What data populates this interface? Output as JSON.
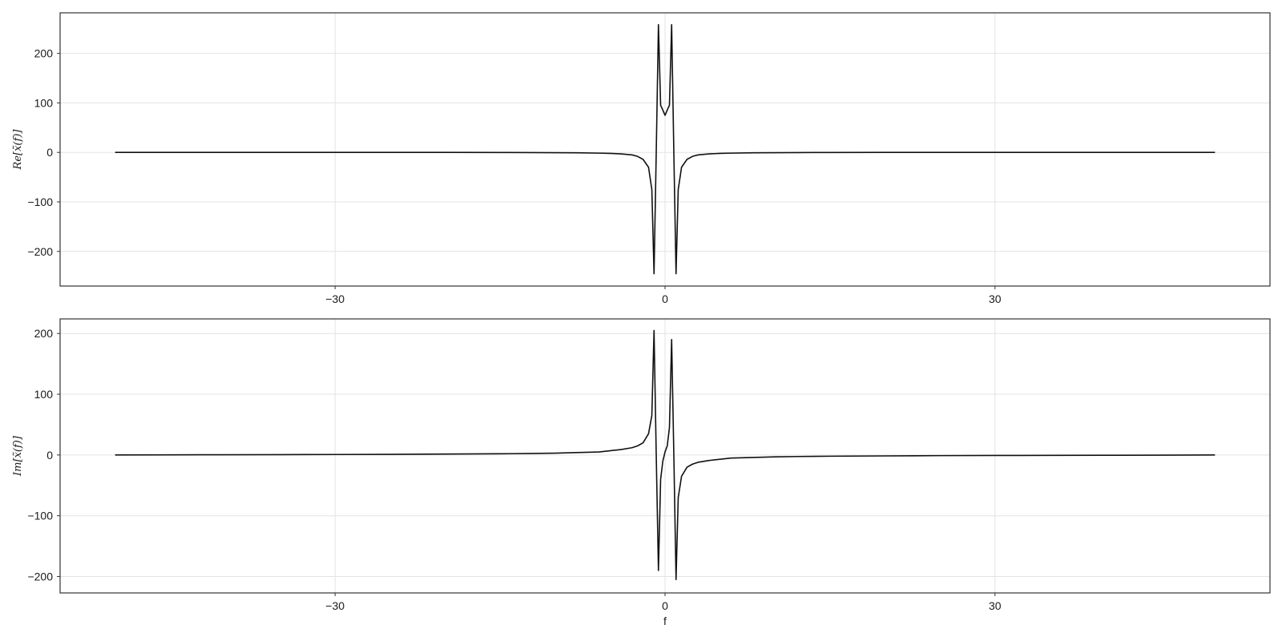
{
  "chart_data": [
    {
      "type": "line",
      "ylabel": "Re[x̃(f)]",
      "xlabel": "",
      "xlim": [
        -55,
        55
      ],
      "ylim": [
        -270,
        282
      ],
      "xticks": [
        -30,
        0,
        30
      ],
      "yticks": [
        -200,
        -100,
        0,
        100,
        200
      ],
      "x_tick_labels": [
        "−30",
        "0",
        "30"
      ],
      "y_tick_labels": [
        "−200",
        "−100",
        "0",
        "100",
        "200"
      ],
      "grid": true,
      "series": [
        {
          "x": [
            -50,
            -45,
            -40,
            -35,
            -30,
            -25,
            -20,
            -15,
            -12,
            -10,
            -8,
            -6,
            -5,
            -4,
            -3,
            -2.5,
            -2,
            -1.5,
            -1.2,
            -1,
            -0.8,
            -0.6,
            -0.4,
            -0.25,
            0,
            0.25,
            0.4,
            0.6,
            0.8,
            1,
            1.2,
            1.5,
            2,
            2.5,
            3,
            4,
            5,
            6,
            8,
            10,
            12,
            15,
            20,
            25,
            30,
            35,
            40,
            45,
            50
          ],
          "y": [
            0,
            0,
            0,
            0,
            0,
            0,
            0,
            -0.2,
            -0.3,
            -0.5,
            -0.8,
            -1.5,
            -2,
            -3,
            -5,
            -8,
            -14,
            -30,
            -75,
            -245,
            0,
            258,
            95,
            88,
            75,
            88,
            95,
            258,
            0,
            -245,
            -75,
            -30,
            -14,
            -8,
            -5,
            -3,
            -2,
            -1.5,
            -0.8,
            -0.5,
            -0.3,
            -0.2,
            0,
            0,
            0,
            0,
            0,
            0,
            0
          ]
        }
      ]
    },
    {
      "type": "line",
      "ylabel": "Im[x̃(f)]",
      "xlabel": "f",
      "xlim": [
        -55,
        55
      ],
      "ylim": [
        -227,
        224
      ],
      "xticks": [
        -30,
        0,
        30
      ],
      "yticks": [
        -200,
        -100,
        0,
        100,
        200
      ],
      "x_tick_labels": [
        "−30",
        "0",
        "30"
      ],
      "y_tick_labels": [
        "−200",
        "−100",
        "0",
        "100",
        "200"
      ],
      "grid": true,
      "series": [
        {
          "x": [
            -50,
            -45,
            -40,
            -35,
            -30,
            -25,
            -20,
            -15,
            -12,
            -10,
            -8,
            -6,
            -5,
            -4,
            -3,
            -2.5,
            -2,
            -1.5,
            -1.2,
            -1,
            -0.8,
            -0.6,
            -0.4,
            -0.2,
            0,
            0.2,
            0.4,
            0.6,
            0.8,
            1,
            1.2,
            1.5,
            2,
            2.5,
            3,
            4,
            5,
            6,
            8,
            10,
            12,
            15,
            20,
            25,
            30,
            35,
            40,
            45,
            50
          ],
          "y": [
            0,
            0.3,
            0.4,
            0.6,
            0.8,
            1,
            1.5,
            2,
            2.5,
            3,
            4,
            5,
            7,
            9,
            12,
            15,
            20,
            35,
            65,
            205,
            0,
            -190,
            -40,
            -10,
            5,
            15,
            45,
            190,
            0,
            -205,
            -70,
            -35,
            -20,
            -15,
            -12,
            -9,
            -7,
            -5,
            -4,
            -3,
            -2.5,
            -2,
            -1.5,
            -1,
            -0.8,
            -0.6,
            -0.4,
            -0.3,
            0
          ]
        }
      ]
    }
  ]
}
